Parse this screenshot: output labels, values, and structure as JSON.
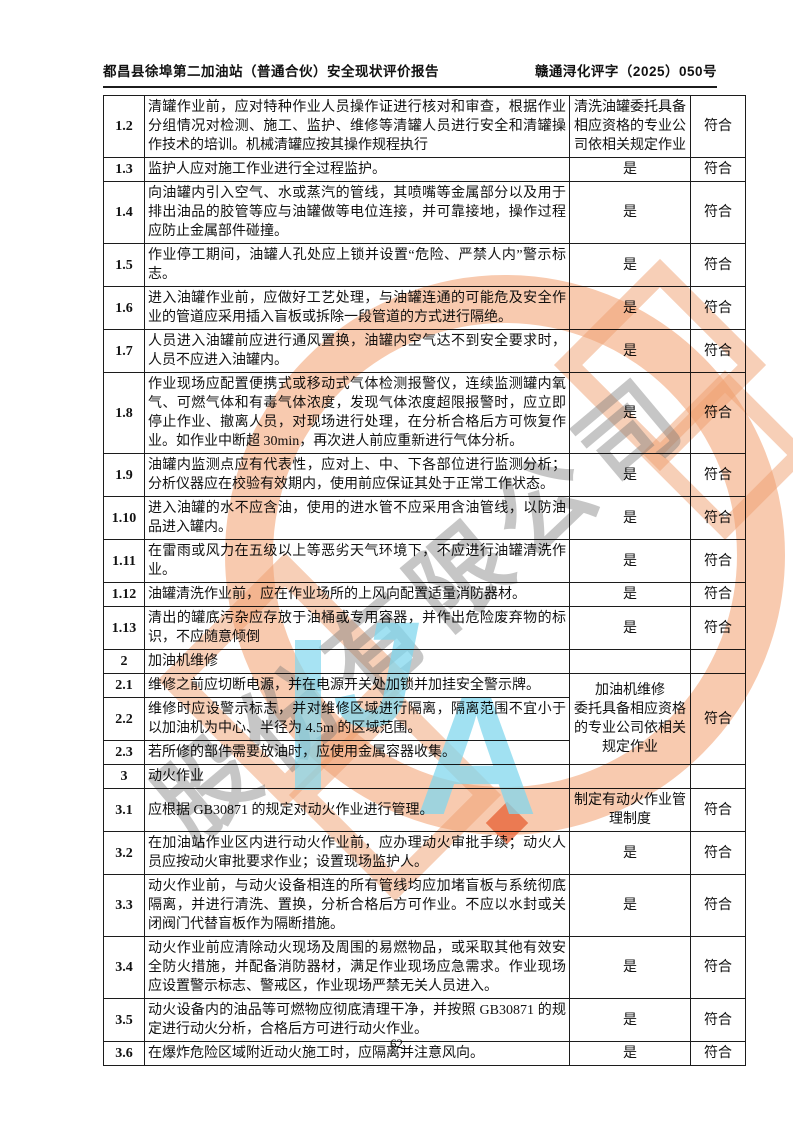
{
  "header": {
    "left_title": "都昌县徐埠第二加油站（普通合伙）安全现状评价报告",
    "right_doc_number": "赣通浔化评字（2025）050号"
  },
  "footer": {
    "page_number": "62"
  },
  "watermark": {
    "seal_text_fragment": "股份有限公司",
    "logo_letter_j": "J",
    "logo_letter_a": "A",
    "orange_color": "#f3a97e",
    "gray_color": "#787878",
    "cyan_color": "#82d7ee",
    "red_color": "#e8663c"
  },
  "table": {
    "rows": [
      {
        "no": "1.2",
        "desc": "清罐作业前，应对特种作业人员操作证进行核对和审查，根据作业分组情况对检测、施工、监护、维修等清罐人员进行安全和清罐操作技术的培训。机械清罐应按其操作规程执行",
        "status": "清洗油罐委托具备相应资格的专业公司依相关规定作业",
        "conclusion": "符合"
      },
      {
        "no": "1.3",
        "desc": "监护人应对施工作业进行全过程监护。",
        "status": "是",
        "conclusion": "符合"
      },
      {
        "no": "1.4",
        "desc": "向油罐内引入空气、水或蒸汽的管线，其喷嘴等金属部分以及用于排出油品的胶管等应与油罐做等电位连接，并可靠接地，操作过程应防止金属部件碰撞。",
        "status": "是",
        "conclusion": "符合"
      },
      {
        "no": "1.5",
        "desc": "作业停工期间，油罐人孔处应上锁并设置“危险、严禁人内”警示标志。",
        "status": "是",
        "conclusion": "符合"
      },
      {
        "no": "1.6",
        "desc": "进入油罐作业前，应做好工艺处理，与油罐连通的可能危及安全作业的管道应采用插入盲板或拆除一段管道的方式进行隔绝。",
        "status": "是",
        "conclusion": "符合"
      },
      {
        "no": "1.7",
        "desc": "人员进入油罐前应进行通风置换，油罐内空气达不到安全要求时，人员不应进入油罐内。",
        "status": "是",
        "conclusion": "符合"
      },
      {
        "no": "1.8",
        "desc": "作业现场应配置便携式或移动式气体检测报警仪，连续监测罐内氧气、可燃气体和有毒气体浓度，发现气体浓度超限报警时，应立即停止作业、撤离人员，对现场进行处理，在分析合格后方可恢复作业。如作业中断超 30min，再次进人前应重新进行气体分析。",
        "status": "是",
        "conclusion": "符合"
      },
      {
        "no": "1.9",
        "desc": "油罐内监测点应有代表性，应对上、中、下各部位进行监测分析；分析仪器应在校验有效期内，使用前应保证其处于正常工作状态。",
        "status": "是",
        "conclusion": "符合"
      },
      {
        "no": "1.10",
        "desc": "进入油罐的水不应含油，使用的进水管不应采用含油管线，以防油品进入罐内。",
        "status": "是",
        "conclusion": "符合"
      },
      {
        "no": "1.11",
        "desc": "在雷雨或风力在五级以上等恶劣天气环境下，不应进行油罐清洗作业。",
        "status": "是",
        "conclusion": "符合"
      },
      {
        "no": "1.12",
        "desc": "油罐清洗作业前，应在作业场所的上风向配置适量消防器材。",
        "status": "是",
        "conclusion": "符合"
      },
      {
        "no": "1.13",
        "desc": "清出的罐底污杂应存放于油桶或专用容器，并作出危险废弃物的标识，不应随意倾倒",
        "status": "是",
        "conclusion": "符合"
      },
      {
        "no": "2",
        "desc": "加油机维修",
        "section": true,
        "status": "",
        "conclusion": ""
      },
      {
        "no": "2.1",
        "desc": "维修之前应切断电源，并在电源开关处加锁并加挂安全警示牌。",
        "status": "加油机维修\n委托具备相应资格的专业公司依相关规定作业",
        "status_rowspan": 3,
        "conclusion": "符合",
        "conclusion_rowspan": 3
      },
      {
        "no": "2.2",
        "desc": "维修时应设警示标志，并对维修区域进行隔离，隔离范围不宜小于以加油机为中心、半径为 4.5m 的区域范围。",
        "status": null,
        "conclusion": null
      },
      {
        "no": "2.3",
        "desc": "若所修的部件需要放油时，应使用金属容器收集。",
        "status": null,
        "conclusion": null
      },
      {
        "no": "3",
        "desc": "动火作业",
        "section": true,
        "status": "",
        "conclusion": ""
      },
      {
        "no": "3.1",
        "desc": "应根据 GB30871 的规定对动火作业进行管理。",
        "status": "制定有动火作业管理制度",
        "conclusion": "符合"
      },
      {
        "no": "3.2",
        "desc": "在加油站作业区内进行动火作业前，应办理动火审批手续；动火人员应按动火审批要求作业；设置现场监护人。",
        "status": "是",
        "conclusion": "符合"
      },
      {
        "no": "3.3",
        "desc": "动火作业前，与动火设备相连的所有管线均应加堵盲板与系统彻底隔离，并进行清洗、置换，分析合格后方可作业。不应以水封或关闭阀门代替盲板作为隔断措施。",
        "status": "是",
        "conclusion": "符合"
      },
      {
        "no": "3.4",
        "desc": "动火作业前应清除动火现场及周围的易燃物品，或采取其他有效安全防火措施，并配备消防器材，满足作业现场应急需求。作业现场应设置警示标志、警戒区，作业现场严禁无关人员进入。",
        "status": "是",
        "conclusion": "符合"
      },
      {
        "no": "3.5",
        "desc": "动火设备内的油品等可燃物应彻底清理干净，并按照 GB30871 的规定进行动火分析，合格后方可进行动火作业。",
        "status": "是",
        "conclusion": "符合"
      },
      {
        "no": "3.6",
        "desc": "在爆炸危险区域附近动火施工时，应隔离并注意风向。",
        "status": "是",
        "conclusion": "符合"
      }
    ]
  }
}
